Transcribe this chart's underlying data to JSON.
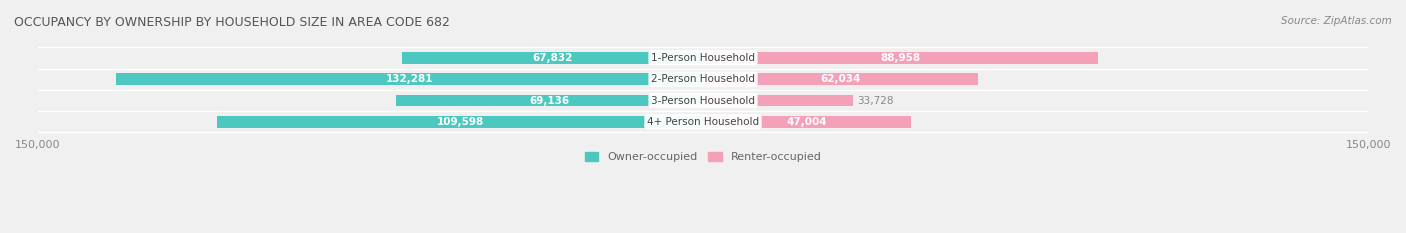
{
  "title": "OCCUPANCY BY OWNERSHIP BY HOUSEHOLD SIZE IN AREA CODE 682",
  "source": "Source: ZipAtlas.com",
  "categories": [
    "1-Person Household",
    "2-Person Household",
    "3-Person Household",
    "4+ Person Household"
  ],
  "owner_values": [
    67832,
    132281,
    69136,
    109598
  ],
  "renter_values": [
    88958,
    62034,
    33728,
    47004
  ],
  "max_val": 150000,
  "owner_color": "#4DC8C0",
  "renter_color": "#F4A0B8",
  "owner_label_color": "#FFFFFF",
  "renter_label_color": "#FFFFFF",
  "owner_dark_color": "#2BA8A0",
  "renter_dark_color": "#E07898",
  "bg_color": "#F0F0F0",
  "bar_bg_color": "#E8E8E8",
  "title_color": "#555555",
  "source_color": "#888888",
  "axis_label_color": "#888888",
  "center_label_bg": "#FFFFFF",
  "legend_owner_color": "#4DC8C0",
  "legend_renter_color": "#F4A0B8",
  "bar_height": 0.55,
  "figsize": [
    14.06,
    2.33
  ],
  "dpi": 100
}
